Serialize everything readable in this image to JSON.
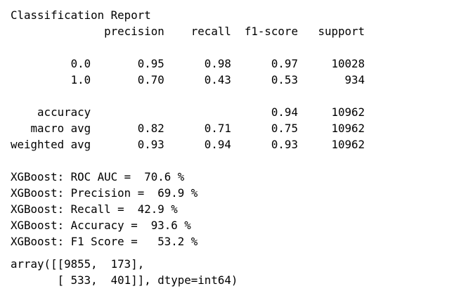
{
  "classification_report": {
    "lines": [
      "Classification Report",
      "              precision    recall  f1-score   support",
      "",
      "         0.0       0.95      0.98      0.97     10028",
      "         1.0       0.70      0.43      0.53       934",
      "",
      "    accuracy                           0.94     10962",
      "   macro avg       0.82      0.71      0.75     10962",
      "weighted avg       0.93      0.94      0.93     10962"
    ]
  },
  "metrics": {
    "lines": [
      "XGBoost: ROC AUC =  70.6 %",
      "XGBoost: Precision =  69.9 %",
      "XGBoost: Recall =  42.9 %",
      "XGBoost: Accuracy =  93.6 %",
      "XGBoost: F1 Score =   53.2 %"
    ]
  },
  "confusion_matrix": {
    "lines": [
      "array([[9855,  173],",
      "       [ 533,  401]], dtype=int64)"
    ]
  }
}
